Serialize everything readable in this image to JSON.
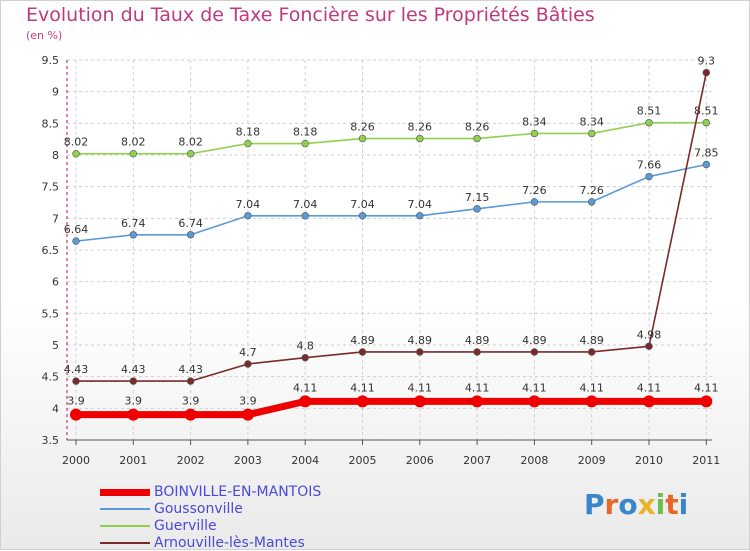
{
  "title": "Evolution du Taux de Taxe Foncière sur les Propriétés Bâties",
  "subtitle": "(en %)",
  "logo_text": "Proxiti",
  "chart_data": {
    "type": "line",
    "title": "Evolution du Taux de Taxe Foncière sur les Propriétés Bâties",
    "ylabel": "(en %)",
    "xlabel": "",
    "x": [
      "2000",
      "2001",
      "2002",
      "2003",
      "2004",
      "2005",
      "2006",
      "2007",
      "2008",
      "2009",
      "2010",
      "2011"
    ],
    "ylim": [
      3.5,
      9.5
    ],
    "yticks": [
      3.5,
      4,
      4.5,
      5,
      5.5,
      6,
      6.5,
      7,
      7.5,
      8,
      8.5,
      9,
      9.5
    ],
    "grid": true,
    "legend_position": "bottom-left",
    "series": [
      {
        "name": "BOINVILLE-EN-MANTOIS",
        "color": "#ee0000",
        "values": [
          3.9,
          3.9,
          3.9,
          3.9,
          4.11,
          4.11,
          4.11,
          4.11,
          4.11,
          4.11,
          4.11,
          4.11
        ],
        "labels": [
          "3.9",
          "3.9",
          "3.9",
          "3.9",
          "4.11",
          "4.11",
          "4.11",
          "4.11",
          "4.11",
          "4.11",
          "4.11",
          "4.11"
        ]
      },
      {
        "name": "Goussonville",
        "color": "#5b9bd5",
        "values": [
          6.64,
          6.74,
          6.74,
          7.04,
          7.04,
          7.04,
          7.04,
          7.15,
          7.26,
          7.26,
          7.66,
          7.85
        ],
        "labels": [
          "6.64",
          "6.74",
          "6.74",
          "7.04",
          "7.04",
          "7.04",
          "7.04",
          "7.15",
          "7.26",
          "7.26",
          "7.66",
          "7.85"
        ]
      },
      {
        "name": "Guerville",
        "color": "#8fd14f",
        "values": [
          8.02,
          8.02,
          8.02,
          8.18,
          8.18,
          8.26,
          8.26,
          8.26,
          8.34,
          8.34,
          8.51,
          8.51
        ],
        "labels": [
          "8.02",
          "8.02",
          "8.02",
          "8.18",
          "8.18",
          "8.26",
          "8.26",
          "8.26",
          "8.34",
          "8.34",
          "8.51",
          "8.51"
        ]
      },
      {
        "name": "Arnouville-lès-Mantes",
        "color": "#7a2a2a",
        "values": [
          4.43,
          4.43,
          4.43,
          4.7,
          4.8,
          4.89,
          4.89,
          4.89,
          4.89,
          4.89,
          4.98,
          9.3
        ],
        "labels": [
          "4.43",
          "4.43",
          "4.43",
          "4.7",
          "4.8",
          "4.89",
          "4.89",
          "4.89",
          "4.89",
          "4.89",
          "4.98",
          "9.3"
        ]
      }
    ]
  }
}
